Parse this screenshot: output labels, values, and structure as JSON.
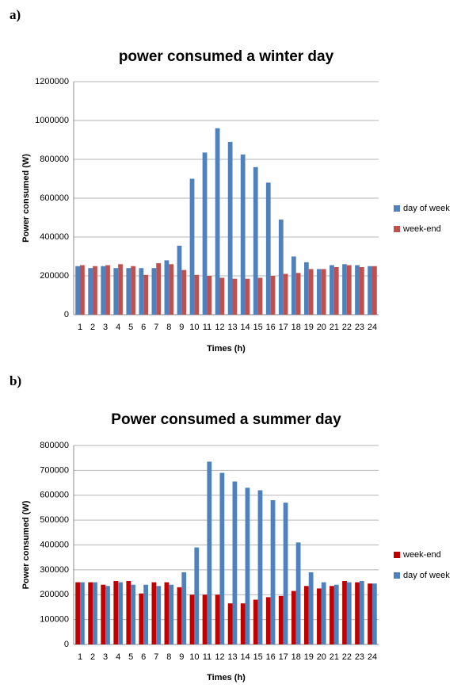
{
  "chart_data": [
    {
      "type": "bar",
      "panel_label": "a)",
      "title": "power consumed a winter day",
      "x_label": "Times (h)",
      "y_label": "Power consumed  (W)",
      "categories": [
        "1",
        "2",
        "3",
        "4",
        "5",
        "6",
        "7",
        "8",
        "9",
        "10",
        "11",
        "12",
        "13",
        "14",
        "15",
        "16",
        "17",
        "18",
        "19",
        "20",
        "21",
        "22",
        "23",
        "24"
      ],
      "series": [
        {
          "name": "day of week",
          "color": "#4f81bd",
          "values": [
            250000,
            240000,
            250000,
            240000,
            240000,
            240000,
            240000,
            280000,
            355000,
            700000,
            835000,
            960000,
            890000,
            825000,
            760000,
            680000,
            490000,
            300000,
            270000,
            235000,
            255000,
            260000,
            255000,
            250000
          ]
        },
        {
          "name": "week-end",
          "color": "#c0504d",
          "values": [
            255000,
            250000,
            255000,
            260000,
            250000,
            205000,
            265000,
            260000,
            230000,
            205000,
            200000,
            190000,
            185000,
            185000,
            190000,
            200000,
            210000,
            215000,
            235000,
            235000,
            245000,
            255000,
            245000,
            250000
          ]
        }
      ],
      "ylim": [
        0,
        1200000
      ],
      "yticks": [
        0,
        200000,
        400000,
        600000,
        800000,
        1000000,
        1200000
      ],
      "grid": true,
      "legend": "right"
    },
    {
      "type": "bar",
      "panel_label": "b)",
      "title": "Power consumed a summer day",
      "x_label": "Times (h)",
      "y_label": "Power consumed  (W)",
      "categories": [
        "1",
        "2",
        "3",
        "4",
        "5",
        "6",
        "7",
        "8",
        "9",
        "10",
        "11",
        "12",
        "13",
        "14",
        "15",
        "16",
        "17",
        "18",
        "19",
        "20",
        "21",
        "22",
        "23",
        "24"
      ],
      "series": [
        {
          "name": "week-end",
          "color": "#c00000",
          "values": [
            250000,
            250000,
            240000,
            255000,
            255000,
            205000,
            250000,
            250000,
            230000,
            200000,
            200000,
            200000,
            165000,
            165000,
            180000,
            190000,
            195000,
            215000,
            235000,
            225000,
            235000,
            255000,
            250000,
            245000
          ]
        },
        {
          "name": "day of week",
          "color": "#4f81bd",
          "values": [
            250000,
            250000,
            235000,
            250000,
            240000,
            240000,
            235000,
            240000,
            290000,
            390000,
            735000,
            690000,
            655000,
            630000,
            620000,
            580000,
            570000,
            410000,
            290000,
            250000,
            240000,
            250000,
            255000,
            245000
          ]
        }
      ],
      "ylim": [
        0,
        800000
      ],
      "yticks": [
        0,
        100000,
        200000,
        300000,
        400000,
        500000,
        600000,
        700000,
        800000
      ],
      "grid": true,
      "legend": "right"
    }
  ]
}
